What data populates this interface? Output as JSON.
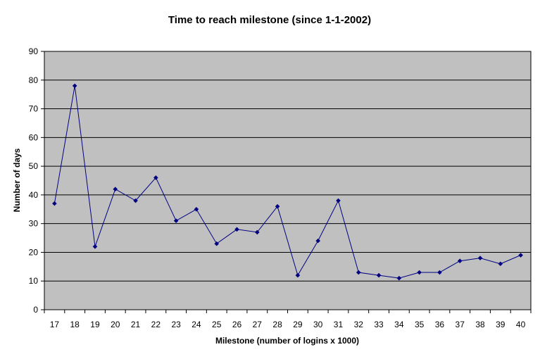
{
  "chart_data": {
    "type": "line",
    "title": "Time to reach milestone (since 1-1-2002)",
    "xlabel": "Milestone (number of logins x 1000)",
    "ylabel": "Number of days",
    "x": [
      "17",
      "18",
      "19",
      "20",
      "21",
      "22",
      "23",
      "24",
      "25",
      "26",
      "27",
      "28",
      "29",
      "30",
      "31",
      "32",
      "33",
      "34",
      "35",
      "36",
      "37",
      "38",
      "39",
      "40"
    ],
    "series": [
      {
        "values": [
          37,
          78,
          22,
          42,
          38,
          46,
          31,
          35,
          23,
          28,
          27,
          36,
          12,
          24,
          38,
          13,
          12,
          11,
          13,
          13,
          17,
          18,
          16,
          19
        ]
      }
    ],
    "ylim": [
      0,
      90
    ],
    "yticks": [
      "0",
      "10",
      "20",
      "30",
      "40",
      "50",
      "60",
      "70",
      "80",
      "90"
    ],
    "grid": true,
    "legend": "none",
    "colors": {
      "plot_background": "#c0c0c0",
      "line": "#000080",
      "marker": "#000080",
      "gridline": "#000000"
    }
  }
}
